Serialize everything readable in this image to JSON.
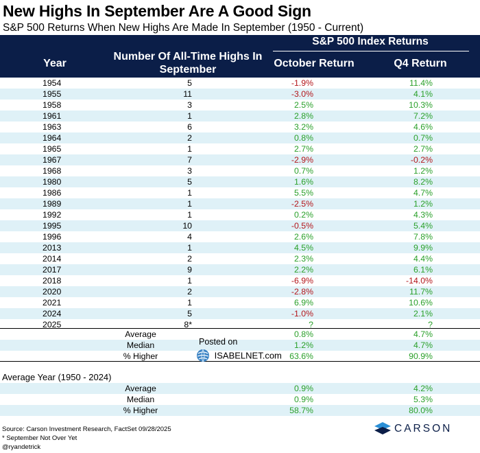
{
  "title": "New Highs In September Are A Good Sign",
  "subtitle": "S&P 500 Returns When New Highs Are Made In September (1950 - Current)",
  "header": {
    "group": "S&P 500 Index Returns",
    "year": "Year",
    "num": "Number Of All-Time Highs In September",
    "oct": "October Return",
    "q4": "Q4 Return"
  },
  "chart_data": {
    "type": "table",
    "columns": [
      "Year",
      "Number Of All-Time Highs In September",
      "October Return",
      "Q4 Return"
    ],
    "rows": [
      [
        "1954",
        "5",
        "-1.9%",
        "11.4%"
      ],
      [
        "1955",
        "11",
        "-3.0%",
        "4.1%"
      ],
      [
        "1958",
        "3",
        "2.5%",
        "10.3%"
      ],
      [
        "1961",
        "1",
        "2.8%",
        "7.2%"
      ],
      [
        "1963",
        "6",
        "3.2%",
        "4.6%"
      ],
      [
        "1964",
        "2",
        "0.8%",
        "0.7%"
      ],
      [
        "1965",
        "1",
        "2.7%",
        "2.7%"
      ],
      [
        "1967",
        "7",
        "-2.9%",
        "-0.2%"
      ],
      [
        "1968",
        "3",
        "0.7%",
        "1.2%"
      ],
      [
        "1980",
        "5",
        "1.6%",
        "8.2%"
      ],
      [
        "1986",
        "1",
        "5.5%",
        "4.7%"
      ],
      [
        "1989",
        "1",
        "-2.5%",
        "1.2%"
      ],
      [
        "1992",
        "1",
        "0.2%",
        "4.3%"
      ],
      [
        "1995",
        "10",
        "-0.5%",
        "5.4%"
      ],
      [
        "1996",
        "4",
        "2.6%",
        "7.8%"
      ],
      [
        "2013",
        "1",
        "4.5%",
        "9.9%"
      ],
      [
        "2014",
        "2",
        "2.3%",
        "4.4%"
      ],
      [
        "2017",
        "9",
        "2.2%",
        "6.1%"
      ],
      [
        "2018",
        "1",
        "-6.9%",
        "-14.0%"
      ],
      [
        "2020",
        "2",
        "-2.8%",
        "11.7%"
      ],
      [
        "2021",
        "1",
        "6.9%",
        "10.6%"
      ],
      [
        "2024",
        "5",
        "-1.0%",
        "2.1%"
      ],
      [
        "2025",
        "8*",
        "?",
        "?"
      ]
    ],
    "summary": [
      [
        "Average",
        "0.8%",
        "4.7%"
      ],
      [
        "Median",
        "1.2%",
        "4.7%"
      ],
      [
        "% Higher",
        "63.6%",
        "90.9%"
      ]
    ],
    "average_year_label": "Average Year (1950 - 2024)",
    "average_year": [
      [
        "Average",
        "0.9%",
        "4.2%"
      ],
      [
        "Median",
        "0.9%",
        "5.3%"
      ],
      [
        "% Higher",
        "58.7%",
        "80.0%"
      ]
    ]
  },
  "colors": {
    "header_bg": "#0b1e48",
    "stripe": "#dff1f7",
    "positive": "#2aa02a",
    "negative": "#b3161b"
  },
  "watermark": {
    "posted": "Posted on",
    "site": "ISABELNET.com"
  },
  "footer": {
    "source": "Source: Carson Investment Research, FactSet 09/28/2025",
    "note": "* September Not Over Yet",
    "handle": "@ryandetrick",
    "brand": "CARSON"
  }
}
